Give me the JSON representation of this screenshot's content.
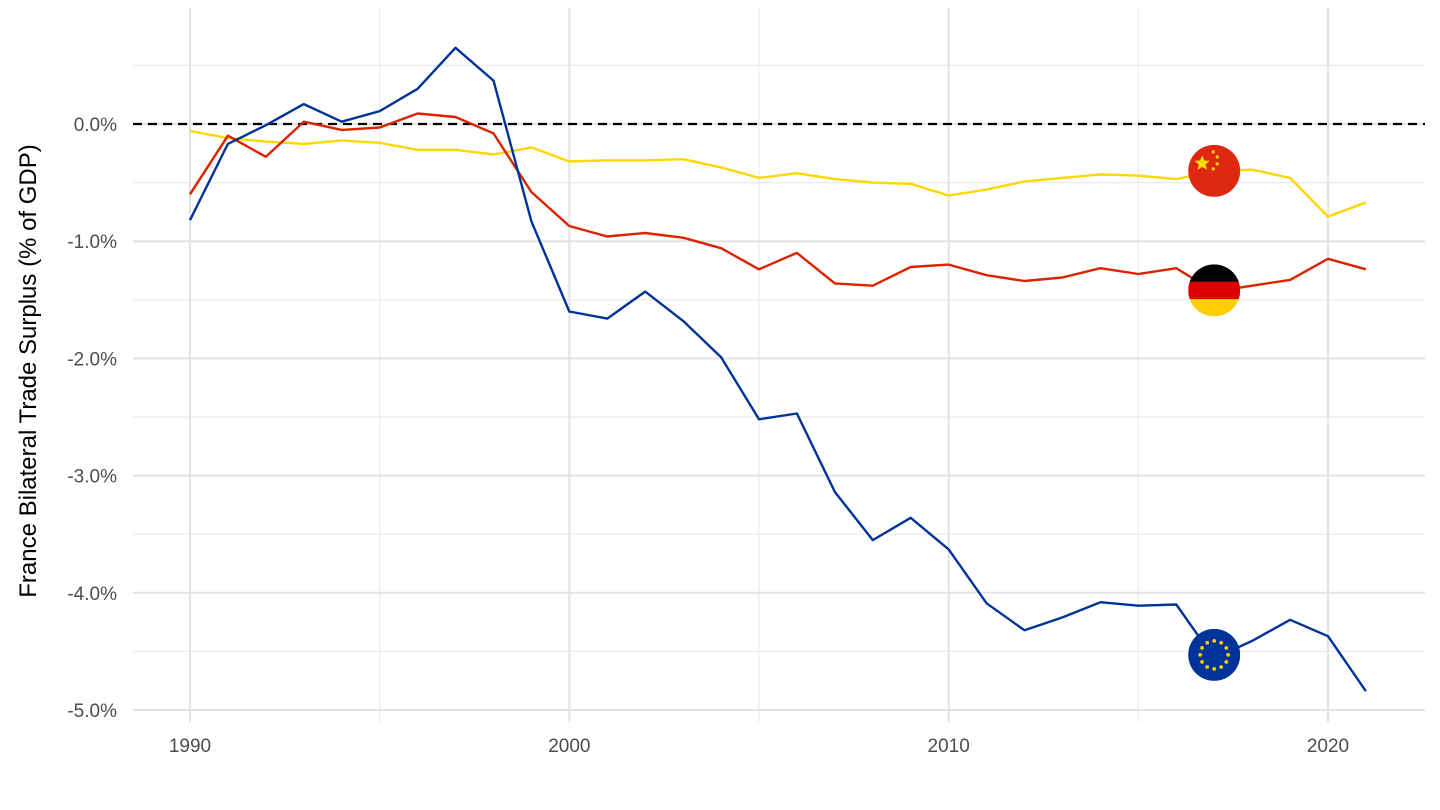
{
  "chart_data": {
    "type": "line",
    "title": "",
    "xlabel": "",
    "ylabel": "France Bilateral Trade Surplus (% of GDP)",
    "xlim": [
      1990,
      2021
    ],
    "ylim": [
      -5.0,
      0.5
    ],
    "x_ticks": [
      1990,
      2000,
      2010,
      2020
    ],
    "y_ticks": [
      0,
      -1,
      -2,
      -3,
      -4,
      -5
    ],
    "y_tick_labels": [
      "0.0%",
      "-1.0%",
      "-2.0%",
      "-3.0%",
      "-4.0%",
      "-5.0%"
    ],
    "grid": true,
    "reference_line": {
      "y": 0,
      "style": "dashed",
      "color": "#000000"
    },
    "x": [
      1990,
      1991,
      1992,
      1993,
      1994,
      1995,
      1996,
      1997,
      1998,
      1999,
      2000,
      2001,
      2002,
      2003,
      2004,
      2005,
      2006,
      2007,
      2008,
      2009,
      2010,
      2011,
      2012,
      2013,
      2014,
      2015,
      2016,
      2017,
      2018,
      2019,
      2020,
      2021
    ],
    "series": [
      {
        "color": "#ffd700",
        "flag": "china-flag-icon",
        "values": [
          -0.06,
          -0.12,
          -0.15,
          -0.17,
          -0.14,
          -0.16,
          -0.22,
          -0.22,
          -0.26,
          -0.2,
          -0.32,
          -0.31,
          -0.31,
          -0.3,
          -0.37,
          -0.46,
          -0.42,
          -0.47,
          -0.5,
          -0.51,
          -0.61,
          -0.56,
          -0.49,
          -0.46,
          -0.43,
          -0.44,
          -0.47,
          -0.4,
          -0.39,
          -0.46,
          -0.79,
          -0.67
        ]
      },
      {
        "color": "#dd2200",
        "flag": "germany-flag-icon",
        "values": [
          -0.6,
          -0.1,
          -0.28,
          0.02,
          -0.05,
          -0.03,
          0.09,
          0.06,
          -0.08,
          -0.58,
          -0.87,
          -0.96,
          -0.93,
          -0.97,
          -1.06,
          -1.24,
          -1.1,
          -1.36,
          -1.38,
          -1.22,
          -1.2,
          -1.29,
          -1.34,
          -1.31,
          -1.23,
          -1.28,
          -1.23,
          -1.43,
          -1.38,
          -1.33,
          -1.15,
          -1.24
        ]
      },
      {
        "color": "#003399",
        "flag": "eu-flag-icon",
        "values": [
          -0.82,
          -0.17,
          -0.01,
          0.17,
          0.02,
          0.11,
          0.3,
          0.65,
          0.37,
          -0.83,
          -1.6,
          -1.66,
          -1.43,
          -1.68,
          -1.99,
          -2.52,
          -2.47,
          -3.14,
          -3.55,
          -3.36,
          -3.63,
          -4.09,
          -4.32,
          -4.21,
          -4.08,
          -4.11,
          -4.1,
          -4.56,
          -4.41,
          -4.23,
          -4.37,
          -4.84
        ]
      }
    ],
    "flag_markers": [
      {
        "icon": "china-flag-icon",
        "x": 2017,
        "y": -0.4
      },
      {
        "icon": "germany-flag-icon",
        "x": 2017,
        "y": -1.42
      },
      {
        "icon": "eu-flag-icon",
        "x": 2017,
        "y": -4.53
      }
    ]
  }
}
